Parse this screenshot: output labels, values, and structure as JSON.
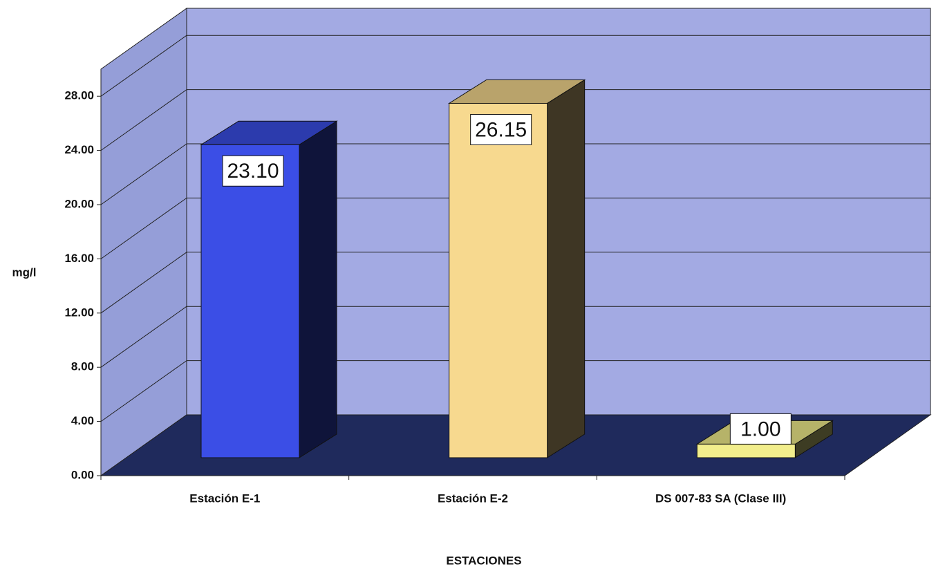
{
  "chart_data": {
    "type": "bar3d",
    "x_label": "ESTACIONES",
    "y_label": "mg/l",
    "categories": [
      "Estación E-1",
      "Estación E-2",
      "DS 007-83 SA (Clase III)"
    ],
    "values": [
      23.1,
      26.15,
      1.0
    ],
    "value_labels": [
      "23.10",
      "26.15",
      "1.00"
    ],
    "colors": [
      "#3b4ee6",
      "#f7d98f",
      "#f2ee8c"
    ],
    "ylim": [
      0,
      30
    ],
    "yticks": [
      {
        "value": 0,
        "label": "0.00"
      },
      {
        "value": 4,
        "label": "4.00"
      },
      {
        "value": 8,
        "label": "8.00"
      },
      {
        "value": 12,
        "label": "12.00"
      },
      {
        "value": 16,
        "label": "16.00"
      },
      {
        "value": 20,
        "label": "20.00"
      },
      {
        "value": 24,
        "label": "24.00"
      },
      {
        "value": 28,
        "label": "28.00"
      }
    ],
    "grid": true
  }
}
